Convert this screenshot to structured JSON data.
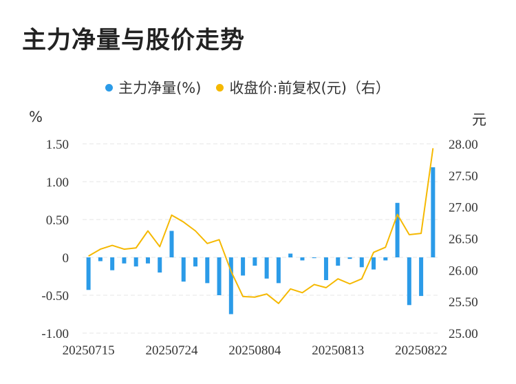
{
  "title": "主力净量与股价走势",
  "legend": [
    {
      "label": "主力净量(%)",
      "color": "#2b9be8"
    },
    {
      "label": "收盘价:前复权(元)（右）",
      "color": "#f5b800"
    }
  ],
  "units": {
    "left": "%",
    "right": "元"
  },
  "chart_data": {
    "type": "bar+line",
    "x": [
      "20250715",
      "20250716",
      "20250717",
      "20250718",
      "20250721",
      "20250722",
      "20250723",
      "20250724",
      "20250725",
      "20250728",
      "20250729",
      "20250730",
      "20250731",
      "20250801",
      "20250804",
      "20250805",
      "20250806",
      "20250807",
      "20250808",
      "20250811",
      "20250812",
      "20250813",
      "20250814",
      "20250815",
      "20250818",
      "20250819",
      "20250820",
      "20250821",
      "20250822",
      "20250825"
    ],
    "x_tick_labels": [
      "20250715",
      "20250724",
      "20250804",
      "20250813",
      "20250822"
    ],
    "series": [
      {
        "name": "主力净量(%)",
        "type": "bar",
        "axis": "left",
        "values": [
          -0.43,
          -0.05,
          -0.17,
          -0.08,
          -0.12,
          -0.08,
          -0.2,
          0.35,
          -0.32,
          -0.12,
          -0.34,
          -0.5,
          -0.75,
          -0.24,
          -0.11,
          -0.28,
          -0.34,
          0.05,
          -0.04,
          -0.01,
          -0.3,
          -0.11,
          -0.02,
          -0.13,
          -0.16,
          -0.04,
          0.72,
          -0.63,
          -0.51,
          1.19
        ]
      },
      {
        "name": "收盘价:前复权(元)（右）",
        "type": "line",
        "axis": "right",
        "values": [
          26.22,
          26.33,
          26.39,
          26.33,
          26.35,
          26.62,
          26.37,
          26.87,
          26.76,
          26.62,
          26.42,
          26.48,
          25.98,
          25.58,
          25.57,
          25.62,
          25.47,
          25.7,
          25.64,
          25.77,
          25.72,
          25.86,
          25.78,
          25.86,
          26.28,
          26.36,
          26.88,
          26.56,
          26.58,
          27.93
        ]
      }
    ],
    "y_left": {
      "ticks": [
        1.5,
        1.0,
        0.5,
        0,
        -0.5,
        -1.0
      ],
      "tick_labels": [
        "1.50",
        "1.00",
        "0.50",
        "0",
        "-0.50",
        "-1.00"
      ],
      "range": [
        -1.0,
        1.5
      ]
    },
    "y_right": {
      "ticks": [
        28.0,
        27.5,
        27.0,
        26.5,
        26.0,
        25.5,
        25.0
      ],
      "tick_labels": [
        "28.00",
        "27.50",
        "27.00",
        "26.50",
        "26.00",
        "25.50",
        "25.00"
      ],
      "range": [
        25.0,
        28.0
      ]
    },
    "grid": true,
    "legend_position": "top-center"
  }
}
